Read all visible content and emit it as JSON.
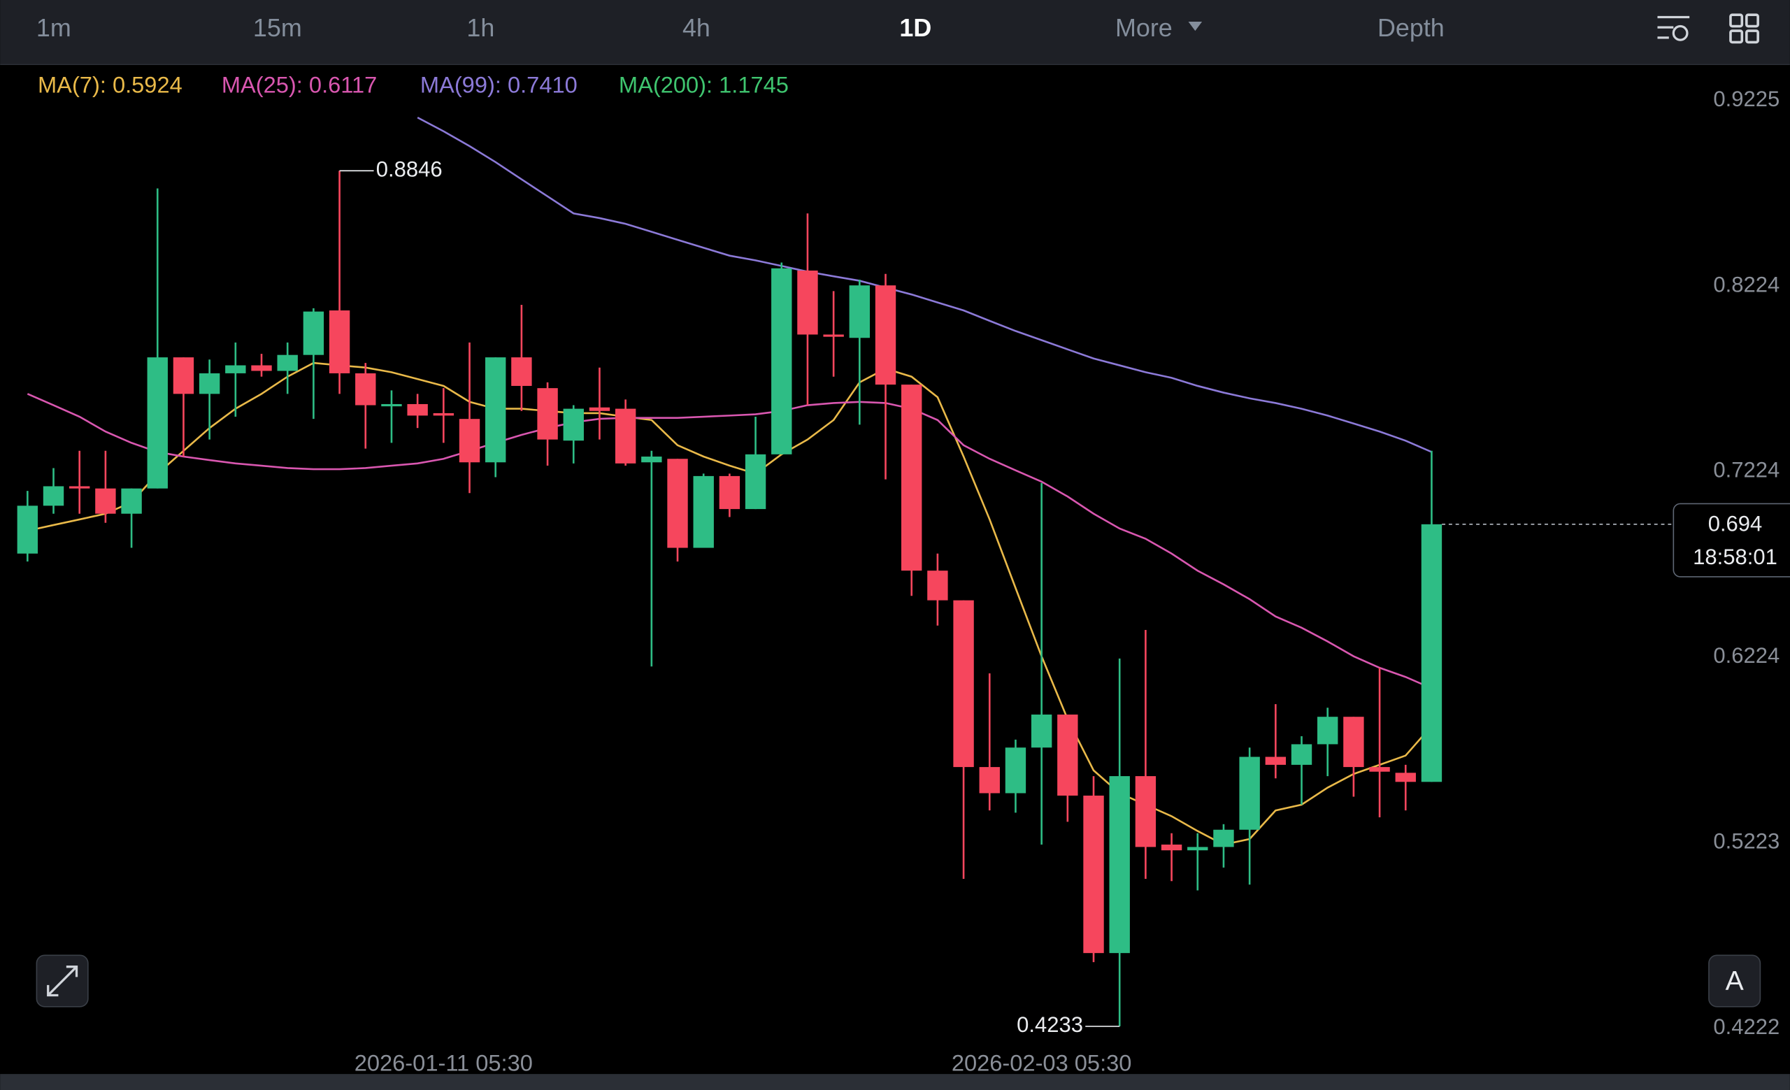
{
  "ui": {
    "tabs": [
      "1m",
      "15m",
      "1h",
      "4h",
      "1D",
      "More",
      "Depth"
    ],
    "active_tab": 4,
    "countdown": "18:58:01",
    "auto_button": "A"
  },
  "chart_data": {
    "type": "candlestick",
    "up_color": "#2ebd85",
    "down_color": "#f6465d",
    "categories": [
      null,
      null,
      null,
      null,
      null,
      null,
      null,
      null,
      null,
      null,
      null,
      null,
      null,
      null,
      null,
      null,
      "2026-01-11 05:30",
      null,
      null,
      null,
      null,
      null,
      null,
      null,
      null,
      null,
      null,
      null,
      null,
      null,
      null,
      null,
      null,
      null,
      null,
      null,
      null,
      null,
      null,
      "2026-02-03 05:30",
      null,
      null,
      null,
      null,
      null,
      null,
      null,
      null,
      null,
      null,
      null,
      null,
      null,
      null,
      null
    ],
    "open": [
      0.6782,
      0.704,
      0.7145,
      0.7133,
      0.6997,
      0.7133,
      0.784,
      0.7643,
      0.7754,
      0.7797,
      0.7767,
      0.7853,
      0.8093,
      0.7754,
      0.7576,
      0.7588,
      0.7539,
      0.7508,
      0.7274,
      0.784,
      0.7674,
      0.7391,
      0.757,
      0.7563,
      0.7274,
      0.7293,
      0.6813,
      0.72,
      0.7022,
      0.7317,
      0.8308,
      0.7963,
      0.7945,
      0.8228,
      0.7693,
      0.669,
      0.653,
      0.5631,
      0.549,
      0.5736,
      0.5914,
      0.5477,
      0.4628,
      0.5582,
      0.5213,
      0.5182,
      0.52,
      0.5293,
      0.5686,
      0.5643,
      0.5754,
      0.5902,
      0.5631,
      0.56,
      0.5551
    ],
    "high": [
      0.712,
      0.7243,
      0.7336,
      0.7336,
      0.7133,
      0.8751,
      0.784,
      0.7828,
      0.792,
      0.7859,
      0.792,
      0.8105,
      0.8846,
      0.781,
      0.7662,
      0.7643,
      0.7674,
      0.792,
      0.784,
      0.8123,
      0.7705,
      0.7582,
      0.7785,
      0.7613,
      0.7336,
      0.7293,
      0.7213,
      0.7213,
      0.752,
      0.8351,
      0.8616,
      0.8197,
      0.8259,
      0.829,
      0.7693,
      0.6782,
      0.653,
      0.6136,
      0.5779,
      0.7163,
      0.5914,
      0.5582,
      0.6216,
      0.637,
      0.5274,
      0.5274,
      0.5323,
      0.5736,
      0.597,
      0.5797,
      0.5951,
      0.5902,
      0.6166,
      0.5643,
      0.7336
    ],
    "low": [
      0.6739,
      0.6997,
      0.6997,
      0.6948,
      0.6813,
      0.7133,
      0.7305,
      0.7397,
      0.752,
      0.7736,
      0.7643,
      0.7508,
      0.7643,
      0.7348,
      0.7379,
      0.7459,
      0.7379,
      0.7108,
      0.7194,
      0.7551,
      0.7256,
      0.7268,
      0.7397,
      0.7256,
      0.6173,
      0.6739,
      0.6813,
      0.6979,
      0.7022,
      0.7317,
      0.7582,
      0.7736,
      0.7477,
      0.7182,
      0.6554,
      0.6394,
      0.5028,
      0.5397,
      0.5385,
      0.5213,
      0.5336,
      0.4579,
      0.4233,
      0.5028,
      0.5016,
      0.4966,
      0.5089,
      0.4997,
      0.557,
      0.5428,
      0.5582,
      0.5471,
      0.536,
      0.5397,
      0.5551
    ],
    "close": [
      0.704,
      0.7145,
      0.7133,
      0.6997,
      0.7133,
      0.784,
      0.7643,
      0.7754,
      0.7797,
      0.7767,
      0.7853,
      0.8087,
      0.7754,
      0.7582,
      0.7588,
      0.7526,
      0.7526,
      0.7274,
      0.784,
      0.7686,
      0.7397,
      0.7563,
      0.7551,
      0.7268,
      0.7305,
      0.6813,
      0.72,
      0.7022,
      0.7317,
      0.832,
      0.7963,
      0.7951,
      0.8228,
      0.7693,
      0.669,
      0.653,
      0.5631,
      0.549,
      0.5736,
      0.5914,
      0.5477,
      0.4628,
      0.5582,
      0.52,
      0.5182,
      0.52,
      0.5293,
      0.5686,
      0.5643,
      0.5754,
      0.5902,
      0.5631,
      0.5606,
      0.5551,
      0.694
    ],
    "series": [
      {
        "name": "MA(7): 0.5924",
        "color": "#e9b949",
        "values": [
          0.6905,
          0.6936,
          0.6966,
          0.6997,
          0.7059,
          0.7213,
          0.7336,
          0.7459,
          0.7563,
          0.7643,
          0.7736,
          0.781,
          0.7797,
          0.7785,
          0.776,
          0.7723,
          0.7686,
          0.76,
          0.7563,
          0.7563,
          0.7551,
          0.7539,
          0.7539,
          0.752,
          0.7502,
          0.7366,
          0.7305,
          0.7256,
          0.7213,
          0.7317,
          0.7397,
          0.7502,
          0.7705,
          0.7779,
          0.7736,
          0.7625,
          0.7305,
          0.6966,
          0.6597,
          0.6228,
          0.589,
          0.5613,
          0.549,
          0.5428,
          0.5366,
          0.5286,
          0.5213,
          0.5243,
          0.5397,
          0.5428,
          0.552,
          0.5594,
          0.5643,
          0.5693,
          0.5853
        ]
      },
      {
        "name": "MA(25): 0.6117",
        "color": "#d957b0",
        "values": [
          0.7643,
          0.7582,
          0.752,
          0.744,
          0.7379,
          0.733,
          0.7305,
          0.7286,
          0.7268,
          0.7256,
          0.7243,
          0.7237,
          0.7237,
          0.7243,
          0.7256,
          0.7268,
          0.7293,
          0.7336,
          0.7379,
          0.7422,
          0.7459,
          0.749,
          0.7508,
          0.7514,
          0.7514,
          0.7514,
          0.752,
          0.7526,
          0.7533,
          0.7551,
          0.7582,
          0.7594,
          0.76,
          0.7594,
          0.7563,
          0.7502,
          0.7366,
          0.7293,
          0.7231,
          0.717,
          0.709,
          0.6997,
          0.6917,
          0.6862,
          0.6782,
          0.669,
          0.6616,
          0.6536,
          0.6443,
          0.6382,
          0.6308,
          0.6228,
          0.6166,
          0.6117,
          0.6056
        ]
      },
      {
        "name": "MA(99): 0.7410",
        "color": "#8c7ad8",
        "values": [
          null,
          null,
          null,
          null,
          null,
          null,
          null,
          null,
          null,
          null,
          null,
          null,
          null,
          null,
          null,
          0.9133,
          0.9059,
          0.8979,
          0.8893,
          0.88,
          0.8708,
          0.8616,
          0.8591,
          0.856,
          0.8517,
          0.8474,
          0.8431,
          0.8388,
          0.8363,
          0.8333,
          0.8302,
          0.8277,
          0.8253,
          0.8216,
          0.8179,
          0.8136,
          0.8093,
          0.8037,
          0.7982,
          0.7933,
          0.7883,
          0.7834,
          0.7797,
          0.776,
          0.773,
          0.7686,
          0.765,
          0.7619,
          0.7594,
          0.7563,
          0.7526,
          0.7483,
          0.744,
          0.7391,
          0.733
        ]
      },
      {
        "name": "MA(200): 1.1745",
        "color": "#3fc56f"
      }
    ],
    "ylim": [
      0.3982,
      0.9416
    ],
    "yticks": [
      0.9225,
      0.8224,
      0.7224,
      0.6224,
      0.5223,
      0.4222
    ],
    "high_mark": 12,
    "low_mark": 42
  }
}
